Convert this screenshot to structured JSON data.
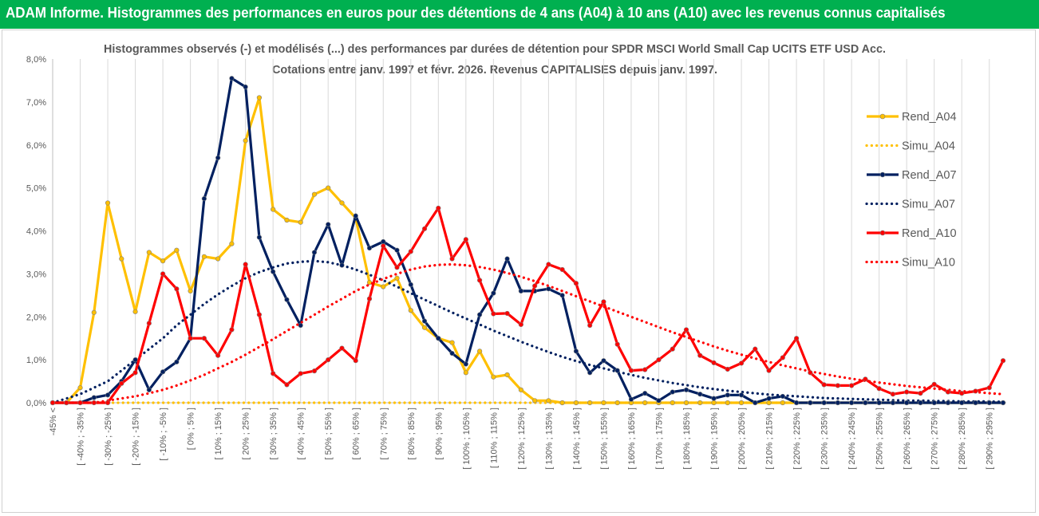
{
  "header": {
    "title": "ADAM Informe. Histogrammes des performances en euros pour des détentions de 4 ans (A04) à 10 ans (A10) avec les revenus connus capitalisés"
  },
  "chart_data": {
    "type": "line",
    "title": "Histogrammes observés (-) et modélisés (...) des performances par durées de détention pour SPDR MSCI World Small Cap UCITS ETF USD Acc.",
    "subtitle": "Cotations entre janv. 1997 et févr. 2026. Revenus CAPITALISES depuis janv. 1997.",
    "xlabel": "",
    "ylabel": "",
    "ylim": [
      0,
      8
    ],
    "y_ticks": [
      "0,0%",
      "1,0%",
      "2,0%",
      "3,0%",
      "4,0%",
      "5,0%",
      "6,0%",
      "7,0%",
      "8,0%"
    ],
    "grid": "vertical",
    "legend_position": "right",
    "categories": [
      "-45% <",
      "[ -45% ; -40% ]",
      "[ -40% ; -35% ]",
      "[ -35% ; -30% ]",
      "[ -30% ; -25% ]",
      "[ -25% ; -20% ]",
      "[ -20% ; -15% ]",
      "[ -15% ; -10% ]",
      "[ -10% ; -5% ]",
      "[ -5% ; 0% ]",
      "[ 0% ; 5% ]",
      "[ 5% ; 10% ]",
      "[ 10% ; 15% ]",
      "[ 15% ; 20% ]",
      "[ 20% ; 25% ]",
      "[ 25% ; 30% ]",
      "[ 30% ; 35% ]",
      "[ 35% ; 40% ]",
      "[ 40% ; 45% ]",
      "[ 45% ; 50% ]",
      "[ 50% ; 55% ]",
      "[ 55% ; 60% ]",
      "[ 60% ; 65% ]",
      "[ 65% ; 70% ]",
      "[ 70% ; 75% ]",
      "[ 75% ; 80% ]",
      "[ 80% ; 85% ]",
      "[ 85% ; 90% ]",
      "[ 90% ; 95% ]",
      "[ 95% ; 100% ]",
      "[ 100% ; 105% ]",
      "[ 105% ; 110% ]",
      "[ 110% ; 115% ]",
      "[ 115% ; 120% ]",
      "[ 120% ; 125% ]",
      "[ 125% ; 130% ]",
      "[ 130% ; 135% ]",
      "[ 135% ; 140% ]",
      "[ 140% ; 145% ]",
      "[ 145% ; 150% ]",
      "[ 150% ; 155% ]",
      "[ 155% ; 160% ]",
      "[ 160% ; 165% ]",
      "[ 165% ; 170% ]",
      "[ 170% ; 175% ]",
      "[ 175% ; 180% ]",
      "[ 180% ; 185% ]",
      "[ 185% ; 190% ]",
      "[ 190% ; 195% ]",
      "[ 195% ; 200% ]",
      "[ 200% ; 205% ]",
      "[ 205% ; 210% ]",
      "[ 210% ; 215% ]",
      "[ 215% ; 220% ]",
      "[ 220% ; 225% ]",
      "[ 225% ; 230% ]",
      "[ 230% ; 235% ]",
      "[ 235% ; 240% ]",
      "[ 240% ; 245% ]",
      "[ 245% ; 250% ]",
      "[ 250% ; 255% ]",
      "[ 255% ; 260% ]",
      "[ 260% ; 265% ]",
      "[ 265% ; 270% ]",
      "[ 270% ; 275% ]",
      "[ 275% ; 280% ]",
      "[ 280% ; 285% ]",
      "[ 285% ; 290% ]",
      "[ 290% ; 295% ]",
      "[ 295% ; 300% ]"
    ],
    "visible_category_labels": [
      "-45% <",
      "[ -40% ; -35% ]",
      "[ -30% ; -25% ]",
      "[ -20% ; -15% ]",
      "[ -10% ; -5% ]",
      "[ 0% ; 5% ]",
      "[ 10% ; 15% ]",
      "[ 20% ; 25% ]",
      "[ 30% ; 35% ]",
      "[ 40% ; 45% ]",
      "[ 50% ; 55% ]",
      "[ 60% ; 65% ]",
      "[ 70% ; 75% ]",
      "[ 80% ; 85% ]",
      "[ 90% ; 95% ]",
      "[ 100% ; 105% ]",
      "[ 110% ; 115% ]",
      "[ 120% ; 125% ]",
      "[ 130% ; 135% ]",
      "[ 140% ; 145% ]",
      "[ 150% ; 155% ]",
      "[ 160% ; 165% ]",
      "[ 170% ; 175% ]",
      "[ 180% ; 185% ]",
      "[ 190% ; 195% ]",
      "[ 200% ; 205% ]",
      "[ 210% ; 215% ]",
      "[ 220% ; 225% ]",
      "[ 230% ; 235% ]",
      "[ 240% ; 245% ]",
      "[ 250% ; 255% ]",
      "[ 260% ; 265% ]",
      "[ 270% ; 275% ]",
      "[ 280% ; 285% ]",
      "[ 290% ; 295% ]"
    ],
    "series": [
      {
        "name": "Rend_A04",
        "style": "solid-markers",
        "color": "#ffc000",
        "values": [
          0.0,
          0.0,
          0.35,
          2.1,
          4.65,
          3.35,
          2.12,
          3.5,
          3.3,
          3.55,
          2.6,
          3.4,
          3.35,
          3.7,
          6.1,
          7.1,
          4.5,
          4.25,
          4.2,
          4.85,
          5.0,
          4.65,
          4.3,
          2.8,
          2.7,
          2.9,
          2.15,
          1.75,
          1.5,
          1.4,
          0.7,
          1.2,
          0.6,
          0.65,
          0.3,
          0.05,
          0.05,
          0.0,
          0.0,
          0.0,
          0.0,
          0.0,
          0.0,
          0.0,
          0.0,
          0.0,
          0.0,
          0.0,
          0.0,
          0.0,
          0.0,
          0.0,
          0.0,
          0.0,
          0.0,
          0.0,
          0.0,
          0.0,
          0.0,
          0.0,
          0.0,
          0.0,
          0.0,
          0.0,
          0.0,
          0.0,
          0.0,
          0.0,
          0.0,
          0.0
        ]
      },
      {
        "name": "Simu_A04",
        "style": "dotted",
        "color": "#ffc000",
        "values": [
          0.0,
          0.0,
          0.0,
          0.0,
          0.0,
          0.0,
          0.0,
          0.0,
          0.0,
          0.0,
          0.0,
          0.0,
          0.0,
          0.0,
          0.0,
          0.0,
          0.0,
          0.0,
          0.0,
          0.0,
          0.0,
          0.0,
          0.0,
          0.0,
          0.0,
          0.0,
          0.0,
          0.0,
          0.0,
          0.0,
          0.0,
          0.0,
          0.0,
          0.0,
          0.0,
          0.0,
          0.0,
          0.0,
          0.0,
          0.0,
          0.0,
          0.0,
          0.0,
          0.0,
          0.0,
          0.0,
          0.0,
          0.0,
          0.0,
          0.0,
          0.0,
          0.0,
          0.0,
          0.0,
          0.0,
          0.0,
          0.0,
          0.0,
          0.0,
          0.0,
          0.0,
          0.0,
          0.0,
          0.0,
          0.0,
          0.0,
          0.0,
          0.0,
          0.0,
          0.0
        ]
      },
      {
        "name": "Rend_A07",
        "style": "solid-markers",
        "color": "#002060",
        "values": [
          0.0,
          0.0,
          0.0,
          0.12,
          0.18,
          0.5,
          1.0,
          0.3,
          0.72,
          0.95,
          1.5,
          4.75,
          5.7,
          7.55,
          7.35,
          3.85,
          3.05,
          2.4,
          1.8,
          3.5,
          4.15,
          3.2,
          4.35,
          3.6,
          3.75,
          3.55,
          2.75,
          1.9,
          1.5,
          1.15,
          0.9,
          2.05,
          2.55,
          3.35,
          2.6,
          2.6,
          2.65,
          2.5,
          1.2,
          0.7,
          0.98,
          0.75,
          0.08,
          0.22,
          0.05,
          0.25,
          0.3,
          0.2,
          0.1,
          0.18,
          0.18,
          0.0,
          0.1,
          0.15,
          0.0,
          0.0,
          0.0,
          0.0,
          0.0,
          0.0,
          0.0,
          0.0,
          0.0,
          0.0,
          0.0,
          0.0,
          0.0,
          0.0,
          0.0,
          0.0
        ]
      },
      {
        "name": "Simu_A07",
        "style": "dotted",
        "color": "#002060",
        "values": [
          0.0,
          0.1,
          0.2,
          0.35,
          0.5,
          0.75,
          1.0,
          1.25,
          1.5,
          1.8,
          2.05,
          2.3,
          2.52,
          2.72,
          2.9,
          3.04,
          3.15,
          3.24,
          3.28,
          3.3,
          3.27,
          3.2,
          3.1,
          2.98,
          2.85,
          2.7,
          2.55,
          2.4,
          2.25,
          2.1,
          1.96,
          1.82,
          1.68,
          1.55,
          1.42,
          1.3,
          1.18,
          1.07,
          0.97,
          0.88,
          0.8,
          0.72,
          0.65,
          0.58,
          0.52,
          0.46,
          0.41,
          0.36,
          0.32,
          0.28,
          0.25,
          0.22,
          0.19,
          0.17,
          0.15,
          0.13,
          0.11,
          0.1,
          0.09,
          0.08,
          0.07,
          0.06,
          0.05,
          0.05,
          0.04,
          0.04,
          0.03,
          0.03,
          0.03,
          0.02
        ]
      },
      {
        "name": "Rend_A10",
        "style": "solid-markers",
        "color": "#ff0000",
        "values": [
          0.0,
          0.0,
          0.0,
          0.0,
          0.0,
          0.45,
          0.7,
          1.85,
          3.0,
          2.65,
          1.5,
          1.5,
          1.1,
          1.7,
          3.22,
          2.05,
          0.68,
          0.42,
          0.68,
          0.74,
          1.0,
          1.27,
          0.98,
          2.42,
          3.65,
          3.15,
          3.52,
          4.05,
          4.53,
          3.35,
          3.8,
          2.85,
          2.07,
          2.08,
          1.82,
          2.72,
          3.22,
          3.1,
          2.78,
          1.8,
          2.35,
          1.36,
          0.75,
          0.77,
          1.0,
          1.25,
          1.7,
          1.1,
          0.93,
          0.78,
          0.92,
          1.25,
          0.75,
          1.05,
          1.5,
          0.7,
          0.42,
          0.4,
          0.4,
          0.55,
          0.33,
          0.2,
          0.25,
          0.22,
          0.43,
          0.25,
          0.22,
          0.27,
          0.35,
          0.98
        ]
      },
      {
        "name": "Simu_A10",
        "style": "dotted",
        "color": "#ff0000",
        "values": [
          0.0,
          0.0,
          0.0,
          0.0,
          0.05,
          0.1,
          0.15,
          0.22,
          0.3,
          0.4,
          0.52,
          0.65,
          0.8,
          0.95,
          1.12,
          1.3,
          1.48,
          1.67,
          1.86,
          2.05,
          2.24,
          2.42,
          2.6,
          2.75,
          2.88,
          3.0,
          3.1,
          3.17,
          3.21,
          3.22,
          3.2,
          3.16,
          3.1,
          3.02,
          2.93,
          2.83,
          2.72,
          2.6,
          2.48,
          2.36,
          2.24,
          2.12,
          2.0,
          1.88,
          1.76,
          1.64,
          1.53,
          1.42,
          1.31,
          1.21,
          1.12,
          1.03,
          0.95,
          0.87,
          0.8,
          0.73,
          0.67,
          0.61,
          0.56,
          0.51,
          0.47,
          0.43,
          0.39,
          0.36,
          0.33,
          0.3,
          0.27,
          0.25,
          0.22,
          0.2
        ]
      }
    ]
  }
}
